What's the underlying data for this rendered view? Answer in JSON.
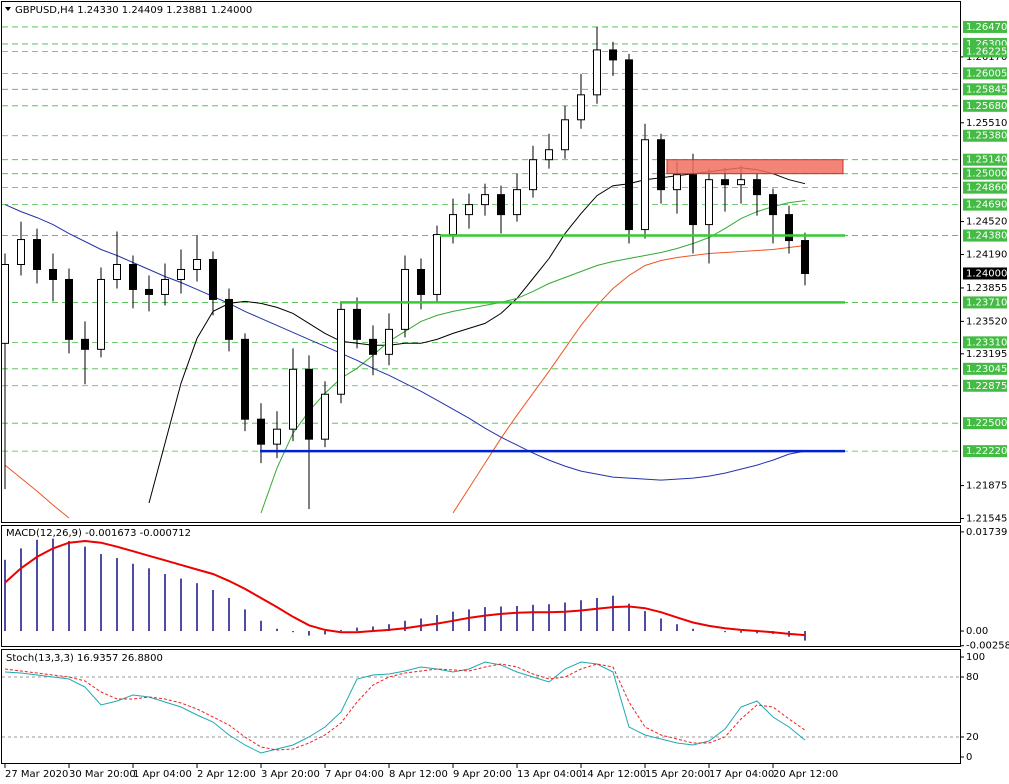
{
  "chart_data": [
    {
      "type": "candlestick",
      "title": "GBPUSD,H4  1.24330 1.24409 1.23881 1.24000",
      "categories": [
        "27 Mar 2020",
        null,
        null,
        null,
        "30 Mar 20:00",
        null,
        null,
        null,
        "1 Apr 04:00",
        null,
        null,
        null,
        "2 Apr 12:00",
        null,
        null,
        null,
        "3 Apr 20:00",
        null,
        null,
        null,
        "7 Apr 04:00",
        null,
        null,
        null,
        "8 Apr 12:00",
        null,
        null,
        null,
        "9 Apr 20:00",
        null,
        null,
        null,
        "13 Apr 04:00",
        null,
        null,
        null,
        "14 Apr 12:00",
        null,
        null,
        null,
        "15 Apr 20:00",
        null,
        null,
        null,
        "17 Apr 04:00",
        null,
        null,
        null,
        "20 Apr 12:00",
        null,
        null
      ],
      "open": [
        1.233,
        1.2409,
        1.2434,
        1.2404,
        1.2394,
        1.2334,
        1.2324,
        1.2394,
        1.2409,
        1.2384,
        1.2379,
        1.2394,
        1.2404,
        1.2414,
        1.2374,
        1.2334,
        1.2254,
        1.2229,
        1.2244,
        1.2304,
        1.2234,
        1.2279,
        1.2364,
        1.2334,
        1.2319,
        1.2344,
        1.2404,
        1.2379,
        1.2439,
        1.2459,
        1.2469,
        1.2479,
        1.2459,
        1.2484,
        1.2514,
        1.2524,
        1.2554,
        1.2579,
        1.2624,
        1.2614,
        1.2444,
        1.2534,
        1.2484,
        1.2499,
        1.2449,
        1.2494,
        1.2489,
        1.2494,
        1.2479,
        1.2459,
        1.2433
      ],
      "high": [
        1.242,
        1.2452,
        1.2445,
        1.242,
        1.2405,
        1.2352,
        1.2406,
        1.2442,
        1.2418,
        1.2398,
        1.241,
        1.2424,
        1.2438,
        1.2422,
        1.2385,
        1.234,
        1.227,
        1.2262,
        1.2325,
        1.2318,
        1.2292,
        1.2372,
        1.2376,
        1.2348,
        1.236,
        1.2418,
        1.2415,
        1.2448,
        1.2475,
        1.248,
        1.249,
        1.2488,
        1.25,
        1.2528,
        1.254,
        1.2568,
        1.26,
        1.2647,
        1.2632,
        1.262,
        1.255,
        1.254,
        1.2512,
        1.252,
        1.2505,
        1.2506,
        1.2508,
        1.25,
        1.2485,
        1.2468,
        1.24409
      ],
      "low": [
        1.2184,
        1.2398,
        1.239,
        1.2372,
        1.232,
        1.2289,
        1.2316,
        1.2385,
        1.2365,
        1.2362,
        1.2368,
        1.238,
        1.2392,
        1.2358,
        1.2322,
        1.2242,
        1.221,
        1.2215,
        1.2232,
        1.2164,
        1.2226,
        1.227,
        1.2325,
        1.2298,
        1.2308,
        1.2336,
        1.2364,
        1.237,
        1.243,
        1.2445,
        1.2458,
        1.244,
        1.2452,
        1.2476,
        1.2505,
        1.2515,
        1.2545,
        1.257,
        1.2598,
        1.243,
        1.2435,
        1.247,
        1.246,
        1.242,
        1.241,
        1.2462,
        1.247,
        1.2458,
        1.243,
        1.242,
        1.23881
      ],
      "close": [
        1.2409,
        1.2434,
        1.2404,
        1.2394,
        1.2334,
        1.2324,
        1.2394,
        1.2409,
        1.2384,
        1.2379,
        1.2394,
        1.2404,
        1.2414,
        1.2374,
        1.2334,
        1.2254,
        1.2229,
        1.2244,
        1.2304,
        1.2234,
        1.2279,
        1.2364,
        1.2334,
        1.2319,
        1.2344,
        1.2404,
        1.2379,
        1.2439,
        1.2459,
        1.2469,
        1.2479,
        1.2459,
        1.2484,
        1.2514,
        1.2524,
        1.2554,
        1.2579,
        1.2624,
        1.2614,
        1.2444,
        1.2534,
        1.2484,
        1.2499,
        1.2449,
        1.2494,
        1.2489,
        1.2494,
        1.2479,
        1.2459,
        1.2433,
        1.24
      ],
      "series": [
        {
          "color": "#000000",
          "values": [
            null,
            null,
            null,
            null,
            null,
            null,
            null,
            null,
            null,
            1.217,
            1.223,
            1.229,
            1.2335,
            1.2362,
            1.237,
            1.2372,
            1.237,
            1.2366,
            1.236,
            1.235,
            1.234,
            1.2332,
            1.233,
            1.2328,
            1.2328,
            1.233,
            1.233,
            1.2334,
            1.234,
            1.2345,
            1.235,
            1.236,
            1.2375,
            1.2395,
            1.2415,
            1.244,
            1.246,
            1.2478,
            1.2488,
            1.249,
            1.2494,
            1.2496,
            1.2498,
            1.25,
            1.2502,
            1.2504,
            1.2506,
            1.2504,
            1.25,
            1.2494,
            1.249
          ]
        },
        {
          "color": "#33aa33",
          "values": [
            null,
            null,
            null,
            null,
            null,
            null,
            null,
            null,
            null,
            null,
            null,
            null,
            null,
            null,
            null,
            null,
            1.216,
            1.2205,
            1.224,
            1.2262,
            1.228,
            1.2295,
            1.2305,
            1.2318,
            1.2332,
            1.2342,
            1.2352,
            1.2358,
            1.2362,
            1.2365,
            1.2368,
            1.2371,
            1.2375,
            1.2382,
            1.239,
            1.2396,
            1.2402,
            1.2408,
            1.2412,
            1.2415,
            1.2418,
            1.2421,
            1.2425,
            1.243,
            1.2436,
            1.2445,
            1.2455,
            1.2462,
            1.2467,
            1.2471,
            1.2473
          ]
        },
        {
          "color": "#ee5522",
          "values": [
            1.2208,
            1.2195,
            1.2182,
            1.2168,
            1.2155,
            null,
            null,
            null,
            null,
            null,
            null,
            null,
            null,
            null,
            null,
            null,
            null,
            null,
            null,
            null,
            null,
            null,
            null,
            null,
            null,
            null,
            null,
            null,
            1.216,
            1.2185,
            1.221,
            1.2235,
            1.2258,
            1.228,
            1.2302,
            1.2325,
            1.2348,
            1.2368,
            1.2385,
            1.2398,
            1.2408,
            1.2413,
            1.2416,
            1.2418,
            1.242,
            1.2421,
            1.2422,
            1.2423,
            1.2424,
            1.2426,
            1.2428
          ]
        },
        {
          "color": "#2233aa",
          "values": [
            1.2469,
            1.2462,
            1.2456,
            1.2449,
            1.244,
            1.2432,
            1.2424,
            1.2418,
            1.2411,
            1.2404,
            1.2397,
            1.2391,
            1.2384,
            1.2377,
            1.237,
            1.2362,
            1.2355,
            1.2348,
            1.2341,
            1.2334,
            1.2327,
            1.232,
            1.2313,
            1.2305,
            1.2298,
            1.229,
            1.2282,
            1.2273,
            1.2264,
            1.2255,
            1.2245,
            1.2236,
            1.2228,
            1.222,
            1.2213,
            1.2207,
            1.2202,
            1.2199,
            1.2196,
            1.2195,
            1.2194,
            1.2193,
            1.2194,
            1.2195,
            1.2197,
            1.22,
            1.2204,
            1.2208,
            1.2213,
            1.2219,
            1.2222
          ]
        }
      ],
      "ylim": [
        1.2151,
        1.2669
      ],
      "yticks": [
        {
          "value": 1.2617,
          "label": "1.26170"
        },
        {
          "value": 1.2551,
          "label": "1.25510"
        },
        {
          "value": 1.2452,
          "label": "1.24520"
        },
        {
          "value": 1.2419,
          "label": "1.24190"
        },
        {
          "value": 1.23855,
          "label": "1.23855"
        },
        {
          "value": 1.2352,
          "label": "1.23520"
        },
        {
          "value": 1.23195,
          "label": "1.23195"
        },
        {
          "value": 1.21875,
          "label": "1.21875"
        },
        {
          "value": 1.21545,
          "label": "1.21545"
        }
      ],
      "levels": [
        {
          "value": 1.2647,
          "label": "1.26470"
        },
        {
          "value": 1.263,
          "label": "1.26300"
        },
        {
          "value": 1.26225,
          "label": "1.26225"
        },
        {
          "value": 1.26005,
          "label": "1.26005"
        },
        {
          "value": 1.25845,
          "label": "1.25845"
        },
        {
          "value": 1.2568,
          "label": "1.25680"
        },
        {
          "value": 1.2538,
          "label": "1.25380"
        },
        {
          "value": 1.2514,
          "label": "1.25140"
        },
        {
          "value": 1.25,
          "label": "1.25000"
        },
        {
          "value": 1.2486,
          "label": "1.24860"
        },
        {
          "value": 1.2469,
          "label": "1.24690"
        },
        {
          "value": 1.2438,
          "label": "1.24380"
        },
        {
          "value": 1.2371,
          "label": "1.23710"
        },
        {
          "value": 1.2331,
          "label": "1.23310"
        },
        {
          "value": 1.23045,
          "label": "1.23045"
        },
        {
          "value": 1.22875,
          "label": "1.22875"
        },
        {
          "value": 1.225,
          "label": "1.22500"
        },
        {
          "value": 1.2222,
          "label": "1.22220"
        }
      ],
      "level_color": "#44bb44",
      "current": {
        "value": 1.24,
        "label": "1.24000"
      },
      "hlines": [
        {
          "value": 1.2438,
          "color": "#33cc33"
        },
        {
          "value": 1.2371,
          "color": "#33cc33"
        },
        {
          "value": 1.2222,
          "color": "#0022cc"
        }
      ],
      "zone": {
        "values": [
          1.25,
          1.2514
        ],
        "color": "#f07060"
      }
    },
    {
      "type": "bar",
      "title": "MACD(12,26,9) -0.001673 -0.000712",
      "series": [
        {
          "type": "bar",
          "color": "#101080",
          "values": [
            0.0125,
            0.0145,
            0.016,
            0.0162,
            0.0158,
            0.0148,
            0.0135,
            0.0128,
            0.0118,
            0.011,
            0.01,
            0.0092,
            0.0084,
            0.0072,
            0.0058,
            0.0038,
            0.0018,
            0.0004,
            -0.0002,
            -0.0008,
            -0.0006,
            0.0002,
            0.0006,
            0.0008,
            0.0012,
            0.0018,
            0.0022,
            0.0028,
            0.0034,
            0.0038,
            0.0042,
            0.0043,
            0.0044,
            0.0046,
            0.0047,
            0.005,
            0.0054,
            0.0058,
            0.0062,
            0.0048,
            0.0035,
            0.0022,
            0.0012,
            0.0004,
            0.0,
            -0.0002,
            -0.0003,
            -0.0004,
            -0.0005,
            -0.001,
            -0.001673
          ]
        },
        {
          "type": "line",
          "color": "#ee0000",
          "values": [
            0.0085,
            0.011,
            0.013,
            0.0145,
            0.0155,
            0.0158,
            0.0155,
            0.0148,
            0.014,
            0.0132,
            0.0124,
            0.0116,
            0.0108,
            0.01,
            0.0088,
            0.0074,
            0.0058,
            0.0042,
            0.0025,
            0.001,
            0.0002,
            -0.0002,
            -0.0002,
            0.0,
            0.0002,
            0.0005,
            0.0009,
            0.0013,
            0.0018,
            0.0023,
            0.0027,
            0.003,
            0.0032,
            0.0033,
            0.0033,
            0.0034,
            0.0036,
            0.0039,
            0.0042,
            0.0043,
            0.004,
            0.0033,
            0.0024,
            0.0015,
            0.0009,
            0.0005,
            0.0002,
            0.0,
            -0.0002,
            -0.0005,
            -0.000712
          ]
        }
      ],
      "ylim": [
        -0.0028,
        0.0186
      ],
      "yticks": [
        0.01739,
        {
          "value": 0,
          "label": "0.00"
        },
        -0.00258
      ]
    },
    {
      "type": "line",
      "title": "Stoch(13,3,3) 16.9357 26.8800",
      "series": [
        {
          "type": "line",
          "color": "#20a8b0",
          "values": [
            85,
            84,
            82,
            80,
            78,
            70,
            52,
            56,
            62,
            60,
            55,
            50,
            42,
            35,
            22,
            12,
            4,
            8,
            12,
            20,
            30,
            45,
            78,
            82,
            83,
            86,
            90,
            88,
            85,
            88,
            95,
            92,
            85,
            80,
            75,
            88,
            95,
            93,
            85,
            30,
            22,
            18,
            14,
            12,
            16,
            28,
            50,
            56,
            40,
            30,
            16.9357
          ]
        },
        {
          "type": "line",
          "color": "#ee2222",
          "dash": true,
          "values": [
            88,
            86,
            84,
            82,
            80,
            76,
            65,
            58,
            58,
            60,
            58,
            54,
            48,
            40,
            32,
            20,
            10,
            7,
            8,
            14,
            22,
            34,
            55,
            72,
            80,
            84,
            86,
            88,
            87,
            86,
            90,
            93,
            90,
            83,
            78,
            80,
            88,
            93,
            90,
            55,
            30,
            22,
            18,
            14,
            14,
            20,
            38,
            52,
            50,
            38,
            26.88
          ]
        }
      ],
      "ylim": [
        0,
        100
      ],
      "yticks": [
        100,
        80,
        20,
        0
      ],
      "levels": [
        80,
        20
      ]
    }
  ]
}
